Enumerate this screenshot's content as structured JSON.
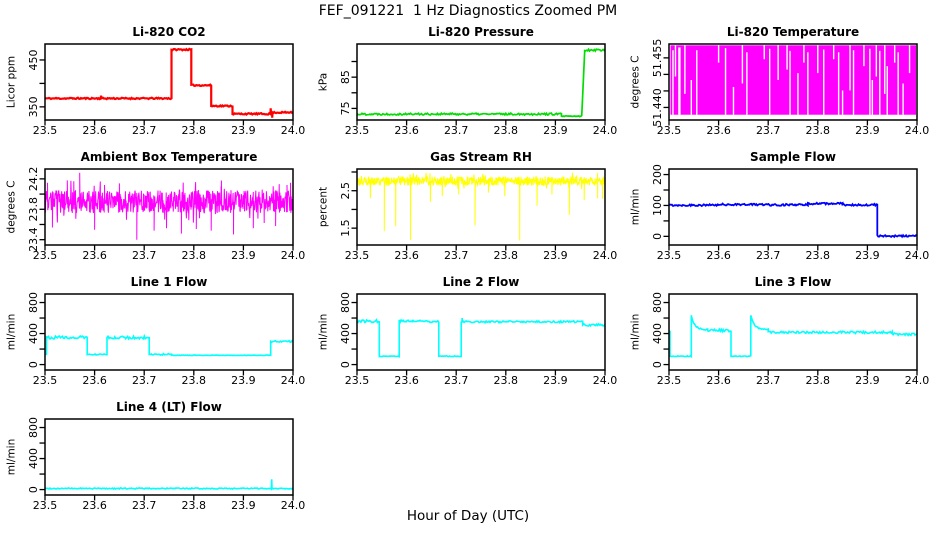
{
  "figure": {
    "title": "FEF_091221  1 Hz Diagnostics Zoomed PM",
    "xlabel": "Hour of Day (UTC)"
  },
  "axes": {
    "xlim": [
      23.5,
      24.0
    ],
    "xticks": [
      23.5,
      23.6,
      23.7,
      23.8,
      23.9,
      24.0
    ]
  },
  "chart_data": [
    {
      "slug": "li820-co2",
      "type": "line",
      "title": "Li-820 CO2",
      "ylabel": "Licor ppm",
      "color": "#ff0000",
      "lw": 2.2,
      "grid": false,
      "ylim": [
        322,
        484
      ],
      "yticks": [
        [
          350,
          "350"
        ],
        [
          400,
          null
        ],
        [
          450,
          "450"
        ]
      ],
      "series": {
        "op": "steps",
        "seed": 11,
        "segments": [
          {
            "x1": 23.5,
            "x2": 23.755,
            "y": 368,
            "jit": 1.5
          },
          {
            "x1": 23.755,
            "x2": 23.795,
            "y": 472,
            "jit": 1.5
          },
          {
            "x1": 23.795,
            "x2": 23.835,
            "y": 396,
            "jit": 1.5
          },
          {
            "x1": 23.835,
            "x2": 23.878,
            "y": 352,
            "jit": 1.5
          },
          {
            "x1": 23.878,
            "x2": 23.956,
            "y": 335,
            "jit": 1.5
          },
          {
            "x1": 23.956,
            "x2": 24.0,
            "y": 338,
            "jit": 1.5
          }
        ],
        "spikes": [
          [
            23.613,
            374
          ],
          [
            23.955,
            347
          ],
          [
            23.958,
            327
          ]
        ]
      }
    },
    {
      "slug": "li820-pressure",
      "type": "line",
      "title": "Li-820 Pressure",
      "ylabel": "kPa",
      "color": "#00dd00",
      "lw": 1.7,
      "grid": false,
      "ylim": [
        71.3,
        95.6
      ],
      "yticks": [
        [
          75,
          "75"
        ],
        [
          80,
          null
        ],
        [
          85,
          "85"
        ],
        [
          90,
          null
        ]
      ],
      "series": {
        "op": "steps",
        "seed": 22,
        "segments": [
          {
            "x1": 23.5,
            "x2": 23.912,
            "y": 73.2,
            "jit": 0.3
          },
          {
            "x1": 23.912,
            "x2": 23.953,
            "y": 72.5,
            "jit": 0.15
          },
          {
            "x1": 23.953,
            "x2": 23.959,
            "y1": 72.5,
            "y2": 93.2,
            "shape": "ramp",
            "jit": 0.3
          },
          {
            "x1": 23.959,
            "x2": 24.0,
            "y": 93.7,
            "jit": 0.35
          }
        ],
        "spikes": []
      }
    },
    {
      "slug": "li820-temperature",
      "type": "band",
      "title": "Li-820 Temperature",
      "ylabel": "degrees C",
      "color": "#ff00ff",
      "grid": false,
      "ylim": [
        51.4362,
        51.4592
      ],
      "yticks": [
        [
          51.44,
          "51.440"
        ],
        [
          51.445,
          null
        ],
        [
          51.45,
          null
        ],
        [
          51.455,
          "51.455"
        ]
      ],
      "series": {
        "op": "band",
        "x1": 23.503,
        "x2": 23.998,
        "top": 51.4588,
        "bottom": 51.4378,
        "gaps": [
          [
            23.508,
            0,
            0.93
          ],
          [
            23.513,
            0.55,
            1
          ],
          [
            23.52,
            0,
            0.97
          ],
          [
            23.522,
            0,
            0.97
          ],
          [
            23.532,
            0.3,
            1
          ],
          [
            23.545,
            0,
            0.5
          ],
          [
            23.556,
            0,
            0.93
          ],
          [
            23.6,
            0.75,
            1
          ],
          [
            23.614,
            0,
            0.96
          ],
          [
            23.63,
            0,
            0.4
          ],
          [
            23.648,
            0.45,
            1
          ],
          [
            23.657,
            0,
            0.9
          ],
          [
            23.692,
            0.8,
            1
          ],
          [
            23.703,
            0,
            0.95
          ],
          [
            23.72,
            0.5,
            1
          ],
          [
            23.738,
            0.65,
            1
          ],
          [
            23.744,
            0,
            0.92
          ],
          [
            23.76,
            0,
            0.6
          ],
          [
            23.772,
            0.75,
            1
          ],
          [
            23.78,
            0,
            0.9
          ],
          [
            23.8,
            0.6,
            1
          ],
          [
            23.812,
            0,
            0.94
          ],
          [
            23.832,
            0.8,
            1
          ],
          [
            23.842,
            0,
            0.9
          ],
          [
            23.85,
            0,
            0.35
          ],
          [
            23.865,
            0.35,
            1
          ],
          [
            23.872,
            0,
            0.93
          ],
          [
            23.893,
            0.7,
            1
          ],
          [
            23.905,
            0,
            0.95
          ],
          [
            23.91,
            0,
            0.5
          ],
          [
            23.918,
            0.55,
            1
          ],
          [
            23.925,
            0,
            0.92
          ],
          [
            23.935,
            0.3,
            1
          ],
          [
            23.94,
            0,
            0.7
          ],
          [
            23.955,
            0.75,
            1
          ],
          [
            23.962,
            0,
            0.9
          ],
          [
            23.972,
            0,
            0.45
          ],
          [
            23.985,
            0.6,
            1
          ]
        ]
      }
    },
    {
      "slug": "ambient-box-temperature",
      "type": "noise",
      "title": "Ambient Box Temperature",
      "ylabel": "degrees C",
      "color": "#ff00ff",
      "lw": 1,
      "grid": false,
      "ylim": [
        23.33,
        24.33
      ],
      "yticks": [
        [
          23.4,
          "23.4"
        ],
        [
          23.6,
          null
        ],
        [
          23.8,
          "23.8"
        ],
        [
          24.0,
          null
        ],
        [
          24.2,
          "24.2"
        ]
      ],
      "series": {
        "op": "noise",
        "seed": 33,
        "mean": 23.9,
        "amp": 0.15,
        "n": 700,
        "spikes": [
          [
            23.505,
            24.15
          ],
          [
            23.515,
            23.56
          ],
          [
            23.545,
            24.18
          ],
          [
            23.558,
            24.17
          ],
          [
            23.57,
            24.28
          ],
          [
            23.6,
            23.53
          ],
          [
            23.62,
            24.12
          ],
          [
            23.65,
            24.14
          ],
          [
            23.685,
            23.4
          ],
          [
            23.72,
            23.52
          ],
          [
            23.745,
            23.55
          ],
          [
            23.775,
            23.48
          ],
          [
            23.805,
            23.54
          ],
          [
            23.835,
            23.52
          ],
          [
            23.855,
            24.1
          ],
          [
            23.88,
            23.47
          ],
          [
            23.92,
            23.55
          ],
          [
            23.942,
            23.62
          ],
          [
            23.965,
            23.58
          ],
          [
            23.988,
            24.12
          ],
          [
            23.995,
            24.15
          ]
        ]
      }
    },
    {
      "slug": "gas-stream-rh",
      "type": "noise",
      "title": "Gas Stream RH",
      "ylabel": "percent",
      "color": "#ffff00",
      "lw": 1,
      "grid": false,
      "ylim": [
        1.05,
        3.08
      ],
      "yticks": [
        [
          1.5,
          "1.5"
        ],
        [
          2.0,
          null
        ],
        [
          2.5,
          "2.5"
        ],
        [
          3.0,
          null
        ]
      ],
      "series": {
        "op": "noise",
        "seed": 44,
        "mean": 2.76,
        "amp": 0.12,
        "n": 700,
        "spikes": [
          [
            23.527,
            2.3
          ],
          [
            23.555,
            1.42
          ],
          [
            23.578,
            1.55
          ],
          [
            23.608,
            1.18
          ],
          [
            23.648,
            2.2
          ],
          [
            23.672,
            2.35
          ],
          [
            23.705,
            2.4
          ],
          [
            23.738,
            1.58
          ],
          [
            23.765,
            2.45
          ],
          [
            23.798,
            2.35
          ],
          [
            23.828,
            1.17
          ],
          [
            23.863,
            2.1
          ],
          [
            23.893,
            2.4
          ],
          [
            23.928,
            1.85
          ],
          [
            23.958,
            2.25
          ],
          [
            23.985,
            2.3
          ],
          [
            23.995,
            2.28
          ]
        ]
      }
    },
    {
      "slug": "sample-flow",
      "type": "line",
      "title": "Sample Flow",
      "ylabel": "ml/min",
      "color": "#0000ff",
      "lw": 1.8,
      "grid": false,
      "ylim": [
        -28,
        218
      ],
      "yticks": [
        [
          0,
          "0"
        ],
        [
          50,
          null
        ],
        [
          100,
          "100"
        ],
        [
          150,
          null
        ],
        [
          200,
          "200"
        ]
      ],
      "series": {
        "op": "steps",
        "seed": 55,
        "segments": [
          {
            "x1": 23.5,
            "x2": 23.6,
            "y": 101,
            "jit": 3
          },
          {
            "x1": 23.6,
            "x2": 23.7,
            "y": 103,
            "jit": 3
          },
          {
            "x1": 23.7,
            "x2": 23.78,
            "y": 102,
            "jit": 3
          },
          {
            "x1": 23.78,
            "x2": 23.85,
            "y": 106,
            "jit": 3
          },
          {
            "x1": 23.85,
            "x2": 23.92,
            "y": 102,
            "jit": 3
          },
          {
            "x1": 23.92,
            "x2": 24.0,
            "y": 1,
            "jit": 3
          }
        ],
        "spikes": []
      }
    },
    {
      "slug": "line1-flow",
      "type": "line",
      "title": "Line 1 Flow",
      "ylabel": "ml/min",
      "color": "#00ffff",
      "lw": 1.6,
      "grid": false,
      "ylim": [
        -70,
        910
      ],
      "yticks": [
        [
          0,
          "0"
        ],
        [
          200,
          null
        ],
        [
          400,
          "400"
        ],
        [
          600,
          null
        ],
        [
          800,
          "800"
        ]
      ],
      "series": {
        "op": "steps",
        "seed": 66,
        "segments": [
          {
            "x1": 23.5,
            "x2": 23.503,
            "y": 135,
            "jit": 5
          },
          {
            "x1": 23.503,
            "x2": 23.585,
            "y": 350,
            "jit": 18
          },
          {
            "x1": 23.585,
            "x2": 23.625,
            "y": 130,
            "jit": 8
          },
          {
            "x1": 23.625,
            "x2": 23.71,
            "y": 350,
            "jit": 18
          },
          {
            "x1": 23.71,
            "x2": 23.755,
            "y": 132,
            "jit": 10
          },
          {
            "x1": 23.755,
            "x2": 23.955,
            "y": 120,
            "jit": 3
          },
          {
            "x1": 23.955,
            "x2": 24.0,
            "y": 298,
            "jit": 10
          }
        ],
        "spikes": []
      }
    },
    {
      "slug": "line2-flow",
      "type": "line",
      "title": "Line 2 Flow",
      "ylabel": "ml/min",
      "color": "#00ffff",
      "lw": 1.6,
      "grid": false,
      "ylim": [
        -70,
        910
      ],
      "yticks": [
        [
          0,
          "0"
        ],
        [
          200,
          null
        ],
        [
          400,
          "400"
        ],
        [
          600,
          null
        ],
        [
          800,
          "800"
        ]
      ],
      "series": {
        "op": "steps",
        "seed": 77,
        "segments": [
          {
            "x1": 23.5,
            "x2": 23.545,
            "y": 560,
            "jit": 18
          },
          {
            "x1": 23.545,
            "x2": 23.585,
            "y": 108,
            "jit": 5
          },
          {
            "x1": 23.585,
            "x2": 23.665,
            "y": 560,
            "jit": 18
          },
          {
            "x1": 23.665,
            "x2": 23.71,
            "y": 108,
            "jit": 5
          },
          {
            "x1": 23.71,
            "x2": 23.955,
            "y": 552,
            "jit": 12
          },
          {
            "x1": 23.955,
            "x2": 24.0,
            "y": 512,
            "jit": 16
          }
        ],
        "spikes": [
          [
            23.712,
            600
          ]
        ]
      }
    },
    {
      "slug": "line3-flow",
      "type": "line",
      "title": "Line 3 Flow",
      "ylabel": "ml/min",
      "color": "#00ffff",
      "lw": 1.6,
      "grid": false,
      "ylim": [
        -70,
        910
      ],
      "yticks": [
        [
          0,
          "0"
        ],
        [
          200,
          null
        ],
        [
          400,
          "400"
        ],
        [
          600,
          null
        ],
        [
          800,
          "800"
        ]
      ],
      "series": {
        "op": "steps",
        "seed": 88,
        "segments": [
          {
            "x1": 23.5,
            "x2": 23.502,
            "y": 430,
            "jit": 4
          },
          {
            "x1": 23.502,
            "x2": 23.545,
            "y": 108,
            "jit": 5
          },
          {
            "x1": 23.545,
            "x2": 23.578,
            "y1": 625,
            "y2": 450,
            "shape": "decay",
            "jit": 10
          },
          {
            "x1": 23.578,
            "x2": 23.625,
            "y": 440,
            "jit": 16
          },
          {
            "x1": 23.625,
            "x2": 23.665,
            "y": 108,
            "jit": 5
          },
          {
            "x1": 23.665,
            "x2": 23.7,
            "y1": 625,
            "y2": 455,
            "shape": "decay",
            "jit": 10
          },
          {
            "x1": 23.7,
            "x2": 23.95,
            "y": 415,
            "jit": 14
          },
          {
            "x1": 23.95,
            "x2": 24.0,
            "y": 392,
            "jit": 18
          }
        ],
        "spikes": []
      }
    },
    {
      "slug": "line4-lt-flow",
      "type": "line",
      "title": "Line 4 (LT) Flow",
      "ylabel": "ml/min",
      "color": "#00ffff",
      "lw": 1.6,
      "grid": false,
      "ylim": [
        -70,
        910
      ],
      "yticks": [
        [
          0,
          "0"
        ],
        [
          200,
          null
        ],
        [
          400,
          "400"
        ],
        [
          600,
          null
        ],
        [
          800,
          "800"
        ]
      ],
      "series": {
        "op": "steps",
        "seed": 99,
        "segments": [
          {
            "x1": 23.5,
            "x2": 24.0,
            "y": 14,
            "jit": 7
          }
        ],
        "spikes": [
          [
            23.957,
            132
          ]
        ]
      }
    }
  ]
}
